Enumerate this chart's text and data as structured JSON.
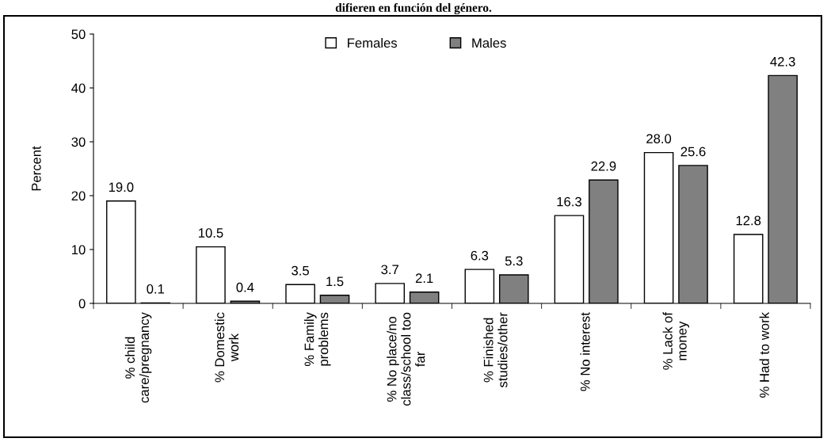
{
  "chart_data": {
    "type": "bar",
    "title": "difieren en función del género.",
    "ylabel": "Percent",
    "categories": [
      "% child\ncare/pregnancy",
      "% Domestic\nwork",
      "% Family\nproblems",
      "% No place/no\nclass/school too\nfar",
      "% Finished\nstudies/other",
      "% No interest",
      "% Lack of\nmoney",
      "% Had to work"
    ],
    "series": [
      {
        "name": "Females",
        "color": "#ffffff",
        "values": [
          19.0,
          10.5,
          3.5,
          3.7,
          6.3,
          16.3,
          28.0,
          12.8
        ],
        "value_labels": [
          "19.0",
          "10.5",
          "3.5",
          "3.7",
          "6.3",
          "16.3",
          "28.0",
          "12.8"
        ]
      },
      {
        "name": "Males",
        "color": "#808080",
        "values": [
          0.1,
          0.4,
          1.5,
          2.1,
          5.3,
          22.9,
          25.6,
          42.3
        ],
        "value_labels": [
          "0.1",
          "0.4",
          "1.5",
          "2.1",
          "5.3",
          "22.9",
          "25.6",
          "42.3"
        ]
      }
    ],
    "ylim": [
      0,
      50
    ],
    "yticks": [
      0,
      10,
      20,
      30,
      40,
      50
    ],
    "grid": false,
    "legend": "top"
  }
}
